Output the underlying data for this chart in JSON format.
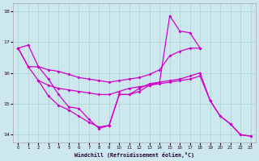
{
  "xlabel": "Windchill (Refroidissement éolien,°C)",
  "bg_color": "#cce8ee",
  "grid_color": "#aad4cc",
  "line_color": "#cc00cc",
  "xlim": [
    -0.5,
    23.5
  ],
  "ylim": [
    13.75,
    18.25
  ],
  "yticks": [
    14,
    15,
    16,
    17,
    18
  ],
  "xticks": [
    0,
    1,
    2,
    3,
    4,
    5,
    6,
    7,
    8,
    9,
    10,
    11,
    12,
    13,
    14,
    15,
    16,
    17,
    18,
    19,
    20,
    21,
    22,
    23
  ],
  "lines": [
    {
      "x": [
        0,
        1,
        2,
        3,
        4,
        5,
        6,
        7,
        8,
        9,
        10,
        11,
        12,
        13,
        14,
        15,
        16,
        17,
        18
      ],
      "y": [
        16.8,
        16.9,
        16.2,
        15.8,
        15.3,
        14.9,
        14.85,
        14.5,
        14.2,
        14.3,
        15.3,
        15.3,
        15.4,
        15.6,
        15.7,
        17.85,
        17.35,
        17.3,
        16.8
      ]
    },
    {
      "x": [
        0,
        1,
        2,
        3,
        4,
        5,
        6,
        7,
        8,
        9,
        10,
        11,
        12,
        13,
        14,
        15,
        16,
        17,
        18
      ],
      "y": [
        16.8,
        16.2,
        16.2,
        16.1,
        16.05,
        15.95,
        15.85,
        15.8,
        15.75,
        15.7,
        15.75,
        15.8,
        15.85,
        15.95,
        16.1,
        16.55,
        16.7,
        16.8,
        16.8
      ]
    },
    {
      "x": [
        0,
        1,
        2,
        3,
        4,
        5,
        6,
        7,
        8,
        9,
        10,
        11,
        12,
        13,
        14,
        15,
        16,
        17,
        18,
        19,
        20,
        21,
        22,
        23
      ],
      "y": [
        16.8,
        16.2,
        15.75,
        15.6,
        15.5,
        15.45,
        15.4,
        15.35,
        15.3,
        15.3,
        15.4,
        15.5,
        15.55,
        15.6,
        15.65,
        15.7,
        15.75,
        15.8,
        15.9,
        15.1,
        14.6,
        14.35,
        14.0,
        13.95
      ]
    },
    {
      "x": [
        2,
        3,
        4,
        5,
        6,
        7,
        8,
        9,
        10,
        11,
        12,
        13,
        14,
        15,
        16,
        17,
        18,
        19,
        20,
        21,
        22,
        23
      ],
      "y": [
        15.75,
        15.25,
        14.95,
        14.8,
        14.6,
        14.4,
        14.25,
        14.3,
        15.3,
        15.3,
        15.5,
        15.65,
        15.7,
        15.75,
        15.8,
        15.9,
        16.0,
        15.1,
        14.6,
        14.35,
        14.0,
        13.95
      ]
    }
  ]
}
